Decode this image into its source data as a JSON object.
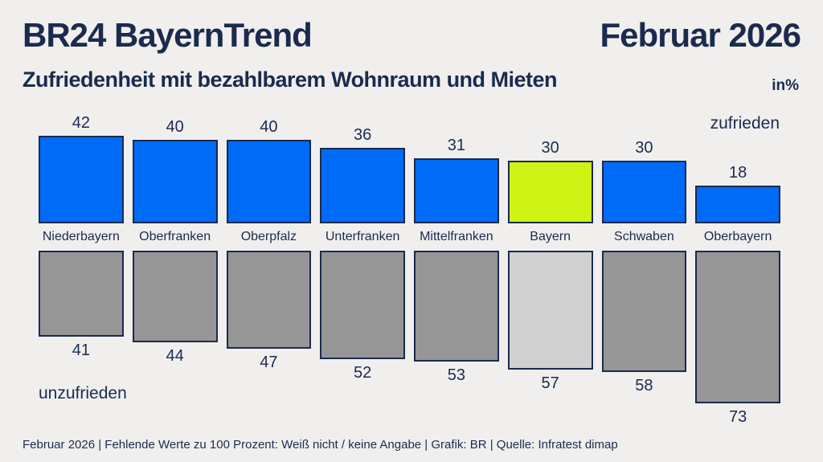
{
  "header": {
    "title": "BR24 BayernTrend",
    "date": "Februar 2026",
    "subtitle": "Zufriedenheit mit bezahlbarem Wohnraum und Mieten",
    "unit": "in%"
  },
  "chart_data": {
    "type": "bar",
    "orientation": "diverging-vertical",
    "categories": [
      "Niederbayern",
      "Oberfranken",
      "Oberpfalz",
      "Unterfranken",
      "Mittelfranken",
      "Bayern",
      "Schwaben",
      "Oberbayern"
    ],
    "series": [
      {
        "name": "zufrieden",
        "values": [
          42,
          40,
          40,
          36,
          31,
          30,
          30,
          18
        ]
      },
      {
        "name": "unzufrieden",
        "values": [
          41,
          44,
          47,
          52,
          53,
          57,
          58,
          73
        ]
      }
    ],
    "highlight_category": "Bayern",
    "value_unit": "%",
    "ylim": [
      0,
      100
    ],
    "grid": false,
    "legend_position": "top-right-and-bottom-left",
    "colors": {
      "zufrieden": "#006bf7",
      "unzufrieden": "#969696",
      "zufrieden_highlight": "#cdf214",
      "unzufrieden_highlight": "#d0d0d0",
      "bar_border": "#1b2a4e",
      "text": "#1b2b4e",
      "background": "#f0efee"
    }
  },
  "footer": {
    "text": "Februar 2026 | Fehlende Werte zu 100 Prozent: Weiß nicht / keine Angabe | Grafik: BR | Quelle: Infratest dimap"
  }
}
